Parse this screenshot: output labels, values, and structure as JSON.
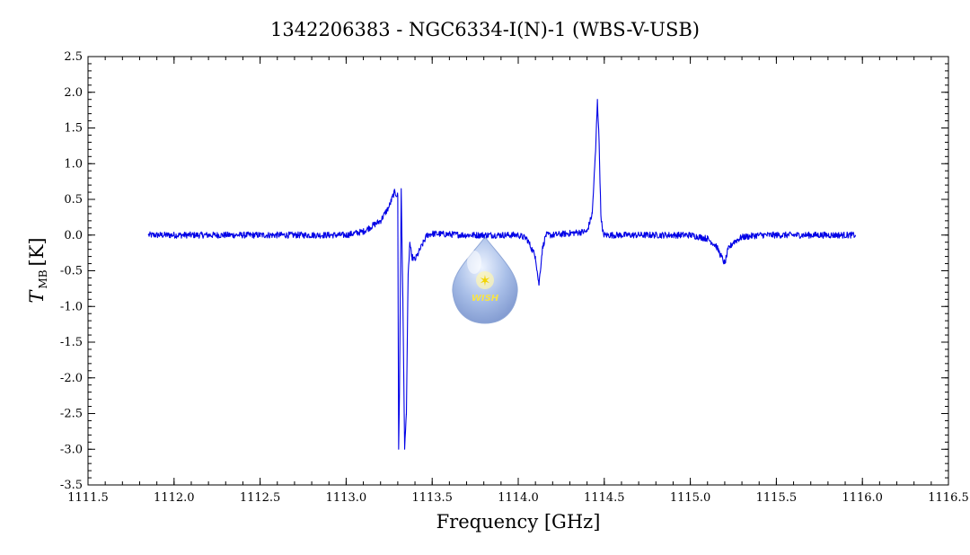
{
  "chart_data": {
    "type": "line",
    "title": "1342206383 - NGC6334-I(N)-1 (WBS-V-USB)",
    "xlabel": "Frequency [GHz]",
    "ylabel_main": "T",
    "ylabel_sub": "MB",
    "ylabel_unit": "[K]",
    "xlim": [
      1111.5,
      1116.5
    ],
    "ylim": [
      -3.5,
      2.5
    ],
    "x_ticks": [
      "1111.5",
      "1112.0",
      "1112.5",
      "1113.0",
      "1113.5",
      "1114.0",
      "1114.5",
      "1115.0",
      "1115.5",
      "1116.0",
      "1116.5"
    ],
    "y_ticks": [
      "2.5",
      "2.0",
      "1.5",
      "1.0",
      "0.5",
      "0.0",
      "-0.5",
      "-1.0",
      "-1.5",
      "-2.0",
      "-2.5",
      "-3.0",
      "-3.5"
    ],
    "grid": false,
    "logo_text": "WISH",
    "series": [
      {
        "color": "#0000e6",
        "x": [
          1111.85,
          1112.5,
          1113.0,
          1113.1,
          1113.2,
          1113.25,
          1113.28,
          1113.3,
          1113.305,
          1113.31,
          1113.32,
          1113.33,
          1113.34,
          1113.35,
          1113.36,
          1113.37,
          1113.38,
          1113.4,
          1113.43,
          1113.47,
          1113.5,
          1113.7,
          1113.9,
          1114.0,
          1114.05,
          1114.1,
          1114.12,
          1114.14,
          1114.16,
          1114.2,
          1114.4,
          1114.43,
          1114.45,
          1114.46,
          1114.47,
          1114.48,
          1114.49,
          1114.5,
          1114.55,
          1114.6,
          1115.0,
          1115.1,
          1115.15,
          1115.2,
          1115.22,
          1115.25,
          1115.3,
          1115.4,
          1115.96
        ],
        "y": [
          0.0,
          0.0,
          0.0,
          0.05,
          0.2,
          0.4,
          0.6,
          0.55,
          -3.0,
          -2.2,
          0.65,
          -1.0,
          -3.0,
          -2.5,
          -0.6,
          -0.1,
          -0.3,
          -0.35,
          -0.2,
          0.0,
          0.02,
          0.0,
          0.0,
          0.0,
          -0.05,
          -0.3,
          -0.7,
          -0.2,
          0.0,
          0.0,
          0.05,
          0.3,
          1.2,
          1.9,
          1.3,
          0.3,
          0.05,
          0.0,
          0.0,
          0.0,
          0.0,
          -0.05,
          -0.15,
          -0.4,
          -0.2,
          -0.1,
          -0.03,
          0.0,
          0.0
        ]
      }
    ]
  }
}
